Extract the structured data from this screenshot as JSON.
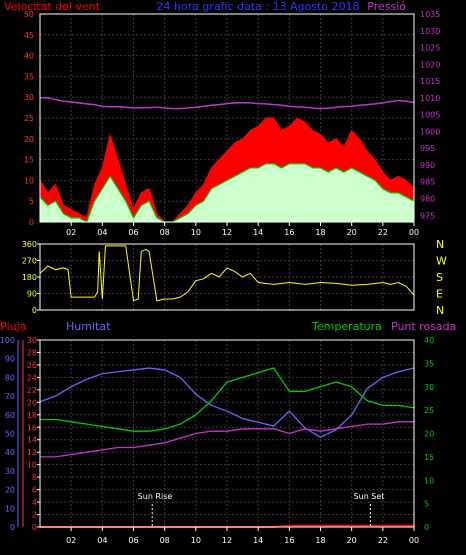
{
  "header": {
    "left_label": "Velocitat del vent",
    "center_label": "24 hora grafic data : 13 Agosto 2018",
    "right_label": "Pressió"
  },
  "wind_dir_labels": [
    "N",
    "W",
    "S",
    "E",
    "N"
  ],
  "bottom_labels": {
    "rain": "Pluja",
    "humidity": "Humitat",
    "temperature": "Temperatura",
    "dewpoint": "Punt rosada",
    "sunrise": "Sun Rise",
    "sunset": "Sun Set"
  },
  "colors": {
    "wind_gust": "#ff0000",
    "wind_avg": "#00cc00",
    "wind_fill": "#ccffcc",
    "pressure": "#cc33cc",
    "wind_dir": "#ffff00",
    "humidity": "#6666ff",
    "temperature": "#00cc00",
    "dewpoint": "#cc33cc",
    "rain": "#ff0000",
    "axis": "#ffffff",
    "grid": "#3a3a3a"
  },
  "chart_data": [
    {
      "type": "line",
      "name": "wind-pressure",
      "x_ticks": [
        "02",
        "04",
        "06",
        "08",
        "10",
        "12",
        "14",
        "16",
        "18",
        "20",
        "22",
        "00"
      ],
      "y_left_ticks": [
        0,
        5,
        10,
        15,
        20,
        25,
        30,
        35,
        40,
        45,
        50
      ],
      "y_left_range": [
        0,
        50
      ],
      "y_right_ticks": [
        975,
        980,
        985,
        990,
        995,
        1000,
        1005,
        1010,
        1015,
        1020,
        1025,
        1030,
        1035
      ],
      "y_right_range": [
        973,
        1035
      ],
      "hours": [
        0,
        0.5,
        1,
        1.5,
        2,
        2.5,
        3,
        3.5,
        4,
        4.5,
        5,
        5.5,
        6,
        6.5,
        7,
        7.5,
        8,
        8.5,
        9,
        9.5,
        10,
        10.5,
        11,
        11.5,
        12,
        12.5,
        13,
        13.5,
        14,
        14.5,
        15,
        15.5,
        16,
        16.5,
        17,
        17.5,
        18,
        18.5,
        19,
        19.5,
        20,
        20.5,
        21,
        21.5,
        22,
        22.5,
        23,
        23.5,
        24
      ],
      "series": [
        {
          "values": [
            10,
            7,
            9,
            4,
            3,
            2,
            1,
            9,
            13,
            21,
            15,
            9,
            3,
            7,
            8,
            2,
            0,
            0,
            2,
            4,
            7,
            9,
            13,
            15,
            17,
            19,
            20,
            22,
            23,
            25,
            25,
            22,
            23,
            25,
            24,
            22,
            21,
            19,
            20,
            18,
            22,
            20,
            17,
            15,
            12,
            10,
            11,
            10,
            8
          ]
        },
        {
          "values": [
            6,
            4,
            5,
            2,
            1,
            1,
            0,
            5,
            8,
            11,
            8,
            5,
            1,
            4,
            5,
            1,
            0,
            0,
            1,
            2,
            4,
            5,
            8,
            9,
            10,
            11,
            12,
            13,
            13,
            14,
            14,
            13,
            14,
            14,
            14,
            13,
            13,
            12,
            13,
            12,
            13,
            12,
            11,
            10,
            8,
            7,
            7,
            6,
            5
          ]
        },
        {
          "values": [
            1010,
            1010,
            1009.5,
            1009,
            1008.8,
            1008.5,
            1008.2,
            1008,
            1007.5,
            1007.3,
            1007.4,
            1007.2,
            1007,
            1007,
            1007.1,
            1007.2,
            1007,
            1006.8,
            1006.8,
            1007,
            1007.2,
            1007.5,
            1007.8,
            1008,
            1008.3,
            1008.5,
            1008.6,
            1008.5,
            1008.3,
            1008.2,
            1008,
            1007.8,
            1007.5,
            1007.3,
            1007.2,
            1007,
            1006.8,
            1006.9,
            1007.2,
            1007.4,
            1007.5,
            1007.8,
            1008,
            1008.2,
            1008.5,
            1008.9,
            1009.2,
            1009,
            1008.6
          ]
        }
      ]
    },
    {
      "type": "line",
      "name": "wind-direction",
      "y_ticks": [
        0,
        90,
        180,
        270,
        360
      ],
      "y_range": [
        0,
        360
      ],
      "hours": [
        0,
        0.5,
        1,
        1.5,
        1.8,
        2,
        2.5,
        3,
        3.5,
        3.7,
        3.8,
        4,
        4.2,
        4.4,
        4.6,
        5,
        5.5,
        6,
        6.3,
        6.5,
        6.8,
        7,
        7.5,
        8,
        8.5,
        9,
        9.5,
        10,
        10.5,
        11,
        11.5,
        12,
        12.5,
        13,
        13.5,
        14,
        15,
        16,
        17,
        18,
        19,
        20,
        21,
        22,
        22.5,
        23,
        23.5,
        24
      ],
      "series": [
        {
          "values": [
            200,
            240,
            220,
            230,
            220,
            70,
            70,
            70,
            70,
            100,
            320,
            60,
            350,
            350,
            350,
            350,
            350,
            50,
            60,
            320,
            330,
            320,
            50,
            60,
            60,
            70,
            100,
            160,
            170,
            200,
            180,
            230,
            210,
            180,
            200,
            150,
            140,
            150,
            140,
            150,
            145,
            135,
            140,
            150,
            140,
            150,
            130,
            80
          ]
        }
      ]
    },
    {
      "type": "line",
      "name": "rain-humidity-temperature",
      "y_rain_ticks": [
        0,
        2,
        4,
        6,
        8,
        10,
        12,
        14,
        16,
        18,
        20,
        22,
        24,
        26,
        28,
        30
      ],
      "y_rain_range": [
        0,
        30
      ],
      "y_humidity_ticks": [
        0,
        10,
        20,
        30,
        40,
        50,
        60,
        70,
        80,
        90,
        100
      ],
      "y_humidity_range": [
        0,
        100
      ],
      "y_temp_ticks": [
        0,
        5,
        10,
        15,
        20,
        25,
        30,
        35,
        40
      ],
      "y_temp_range": [
        0,
        40
      ],
      "hours": [
        0,
        1,
        2,
        3,
        4,
        5,
        6,
        7,
        8,
        9,
        10,
        11,
        12,
        13,
        14,
        15,
        16,
        17,
        18,
        19,
        20,
        21,
        22,
        23,
        24
      ],
      "sunrise_hour": 7.2,
      "sunset_hour": 21.2,
      "series": [
        {
          "values": [
            67,
            70,
            75,
            79,
            82,
            83,
            84,
            85,
            84,
            80,
            71,
            65,
            62,
            58,
            56,
            54,
            62,
            53,
            48,
            52,
            60,
            74,
            80,
            83,
            85
          ]
        },
        {
          "values": [
            23,
            23,
            22.5,
            22,
            21.5,
            21,
            20.5,
            20.5,
            21,
            22,
            24,
            27,
            31,
            32,
            33,
            34,
            29,
            29,
            30,
            31,
            30,
            27,
            26,
            26,
            25.5
          ]
        },
        {
          "values": [
            15,
            15,
            15.5,
            16,
            16.5,
            17,
            17,
            17.5,
            18,
            19,
            20,
            20.5,
            20.5,
            21,
            21,
            21,
            20,
            21,
            20.5,
            21,
            21.5,
            22,
            22,
            22.5,
            22.5
          ]
        },
        {
          "values": [
            0,
            0,
            0,
            0,
            0,
            0,
            0,
            0,
            0,
            0,
            0,
            0,
            0,
            0,
            0,
            0,
            0.2,
            0.2,
            0.2,
            0.2,
            0.2,
            0.2,
            0.2,
            0.2,
            0.2
          ]
        }
      ]
    }
  ]
}
